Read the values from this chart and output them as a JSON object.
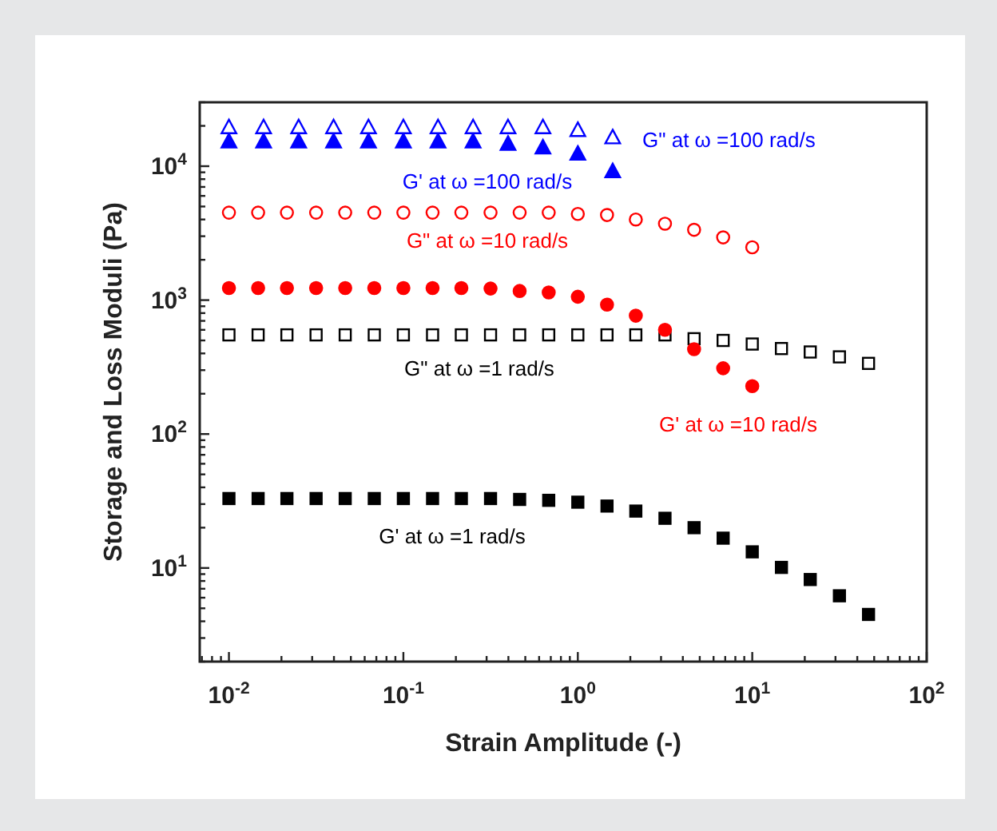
{
  "chart_data": {
    "type": "scatter",
    "xlabel": "Strain Amplitude (-)",
    "ylabel": "Storage and Loss Moduli (Pa)",
    "log": "xy",
    "x": [
      0.01,
      0.0147,
      0.0215,
      0.0316,
      0.0464,
      0.0681,
      0.1,
      0.147,
      0.215,
      0.316,
      0.464,
      0.681,
      1,
      1.47,
      2.15,
      3.16,
      4.64,
      6.81,
      10,
      14.7,
      21.5,
      31.6,
      46.4
    ],
    "xlim": [
      0.0068,
      100
    ],
    "ylim": [
      2,
      30000
    ],
    "xticks": [
      {
        "value": 0.01,
        "label": "10$^{-2}$"
      },
      {
        "value": 0.1,
        "label": "10$^{-1}$"
      },
      {
        "value": 1,
        "label": "10$^{0}$"
      },
      {
        "value": 10,
        "label": "10$^{1}$"
      },
      {
        "value": 100,
        "label": "10$^{2}$"
      },
      {
        "value": 0.007,
        "label": null
      },
      {
        "value": 0.008,
        "label": null
      },
      {
        "value": 0.009,
        "label": null
      },
      {
        "value": 0.02,
        "label": null
      },
      {
        "value": 0.03,
        "label": null
      },
      {
        "value": 0.04,
        "label": null
      },
      {
        "value": 0.05,
        "label": null
      },
      {
        "value": 0.06,
        "label": null
      },
      {
        "value": 0.07,
        "label": null
      },
      {
        "value": 0.08,
        "label": null
      },
      {
        "value": 0.09,
        "label": null
      },
      {
        "value": 0.2,
        "label": null
      },
      {
        "value": 0.3,
        "label": null
      },
      {
        "value": 0.4,
        "label": null
      },
      {
        "value": 0.5,
        "label": null
      },
      {
        "value": 0.6,
        "label": null
      },
      {
        "value": 0.7,
        "label": null
      },
      {
        "value": 0.8,
        "label": null
      },
      {
        "value": 0.9,
        "label": null
      },
      {
        "value": 2,
        "label": null
      },
      {
        "value": 3,
        "label": null
      },
      {
        "value": 4,
        "label": null
      },
      {
        "value": 5,
        "label": null
      },
      {
        "value": 6,
        "label": null
      },
      {
        "value": 7,
        "label": null
      },
      {
        "value": 8,
        "label": null
      },
      {
        "value": 9,
        "label": null
      },
      {
        "value": 20,
        "label": null
      },
      {
        "value": 30,
        "label": null
      },
      {
        "value": 40,
        "label": null
      },
      {
        "value": 50,
        "label": null
      },
      {
        "value": 60,
        "label": null
      },
      {
        "value": 70,
        "label": null
      },
      {
        "value": 80,
        "label": null
      },
      {
        "value": 90,
        "label": null
      }
    ],
    "yticks": [
      {
        "value": 10,
        "label": "10$^{1}$"
      },
      {
        "value": 100,
        "label": "10$^{2}$"
      },
      {
        "value": 1000,
        "label": "10$^{3}$"
      },
      {
        "value": 10000,
        "label": "10$^{4}$"
      },
      {
        "value": 2,
        "label": null
      },
      {
        "value": 3,
        "label": null
      },
      {
        "value": 4,
        "label": null
      },
      {
        "value": 5,
        "label": null
      },
      {
        "value": 6,
        "label": null
      },
      {
        "value": 7,
        "label": null
      },
      {
        "value": 8,
        "label": null
      },
      {
        "value": 9,
        "label": null
      },
      {
        "value": 20,
        "label": null
      },
      {
        "value": 30,
        "label": null
      },
      {
        "value": 40,
        "label": null
      },
      {
        "value": 50,
        "label": null
      },
      {
        "value": 60,
        "label": null
      },
      {
        "value": 70,
        "label": null
      },
      {
        "value": 80,
        "label": null
      },
      {
        "value": 90,
        "label": null
      },
      {
        "value": 200,
        "label": null
      },
      {
        "value": 300,
        "label": null
      },
      {
        "value": 400,
        "label": null
      },
      {
        "value": 500,
        "label": null
      },
      {
        "value": 600,
        "label": null
      },
      {
        "value": 700,
        "label": null
      },
      {
        "value": 800,
        "label": null
      },
      {
        "value": 900,
        "label": null
      },
      {
        "value": 2000,
        "label": null
      },
      {
        "value": 3000,
        "label": null
      },
      {
        "value": 4000,
        "label": null
      },
      {
        "value": 5000,
        "label": null
      },
      {
        "value": 6000,
        "label": null
      },
      {
        "value": 7000,
        "label": null
      },
      {
        "value": 8000,
        "label": null
      },
      {
        "value": 9000,
        "label": null
      },
      {
        "value": 20000,
        "label": null
      },
      {
        "value": 30000,
        "label": null
      }
    ],
    "series": [
      {
        "name": "G\" at ω =100 rad/s",
        "color": "#0000ff",
        "marker": "triangle",
        "x": [
          0.01,
          0.0158,
          0.0251,
          0.0398,
          0.0631,
          0.1,
          0.158,
          0.251,
          0.398,
          0.631,
          1,
          1.585
        ],
        "values": [
          19400,
          19400,
          19400,
          19400,
          19400,
          19400,
          19400,
          19400,
          19400,
          19400,
          18500,
          16300
        ]
      },
      {
        "name": "G' at ω =100 rad/s",
        "color": "#0000ff",
        "marker": "triangle",
        "x": [
          0.01,
          0.0158,
          0.0251,
          0.0398,
          0.0631,
          0.1,
          0.158,
          0.251,
          0.398,
          0.631,
          1,
          1.585
        ],
        "values": [
          15200,
          15200,
          15200,
          15200,
          15200,
          15200,
          15200,
          15200,
          14600,
          13700,
          12300,
          9100
        ]
      },
      {
        "name": "G\" at ω =10 rad/s",
        "color": "#ff0000",
        "marker": "circle",
        "values": [
          4500,
          4500,
          4500,
          4500,
          4500,
          4500,
          4500,
          4500,
          4500,
          4500,
          4500,
          4500,
          4400,
          4320,
          4000,
          3720,
          3350,
          2940,
          2480,
          null,
          null,
          null,
          null
        ]
      },
      {
        "name": "G' at ω =10 rad/s",
        "color": "#ff0000",
        "marker": "circle",
        "values": [
          1230,
          1230,
          1230,
          1230,
          1230,
          1230,
          1230,
          1230,
          1230,
          1220,
          1170,
          1140,
          1060,
          925,
          765,
          600,
          430,
          310,
          228,
          null,
          null,
          null,
          null
        ]
      },
      {
        "name": "G\" at ω =1 rad/s",
        "color": "#000000",
        "marker": "square",
        "values": [
          550,
          550,
          550,
          550,
          550,
          550,
          550,
          550,
          550,
          550,
          550,
          550,
          550,
          550,
          550,
          550,
          515,
          500,
          470,
          435,
          410,
          377,
          337
        ]
      },
      {
        "name": "G' at ω =1 rad/s",
        "color": "#000000",
        "marker": "square",
        "values": [
          33,
          33,
          33,
          33,
          33,
          33,
          33,
          33,
          33,
          33,
          32.5,
          32,
          31,
          29,
          26.6,
          23.5,
          20,
          16.7,
          13.2,
          10.1,
          8.2,
          6.2,
          4.5
        ]
      }
    ]
  }
}
